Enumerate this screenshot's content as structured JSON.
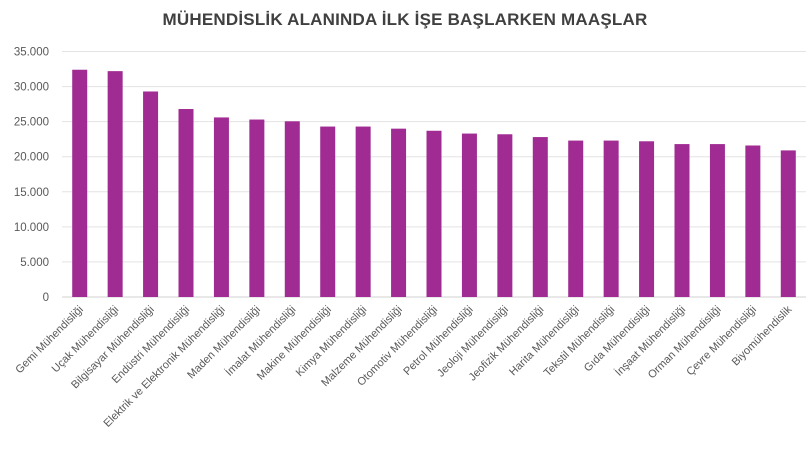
{
  "chart_data": {
    "type": "bar",
    "title": "MÜHENDİSLİK ALANINDA İLK İŞE BAŞLARKEN MAAŞLAR",
    "xlabel": "",
    "ylabel": "",
    "ylim": [
      0,
      35000
    ],
    "yticks": [
      "0",
      "5.000",
      "10.000",
      "15.000",
      "20.000",
      "25.000",
      "30.000",
      "35.000"
    ],
    "grid": true,
    "bar_color": "#A02B93",
    "categories": [
      "Gemi Mühendisliği",
      "Uçak Mühendisliği",
      "Bilgisayar Mühendisliği",
      "Endüstri Mühendisliği",
      "Elektrik ve Elektronik Mühendisliği",
      "Maden Mühendisliği",
      "İmalat Mühendisliği",
      "Makine Mühendisliği",
      "Kimya Mühendisliği",
      "Malzeme Mühendisliği",
      "Otomotiv Mühendisliği",
      "Petrol Mühendisliği",
      "Jeoloji Mühendisliği",
      "Jeofizik Mühendisliği",
      "Harita Mühendisliği",
      "Tekstil Mühendisliği",
      "Gıda Mühendisliği",
      "İnşaat Mühendisliği",
      "Orman Mühendisliği",
      "Çevre Mühendisliği",
      "Biyomühendislik"
    ],
    "values": [
      32400,
      32200,
      29300,
      26800,
      25600,
      25300,
      25050,
      24300,
      24300,
      24000,
      23700,
      23300,
      23200,
      22800,
      22300,
      22300,
      22200,
      21800,
      21800,
      21600,
      20900
    ]
  }
}
